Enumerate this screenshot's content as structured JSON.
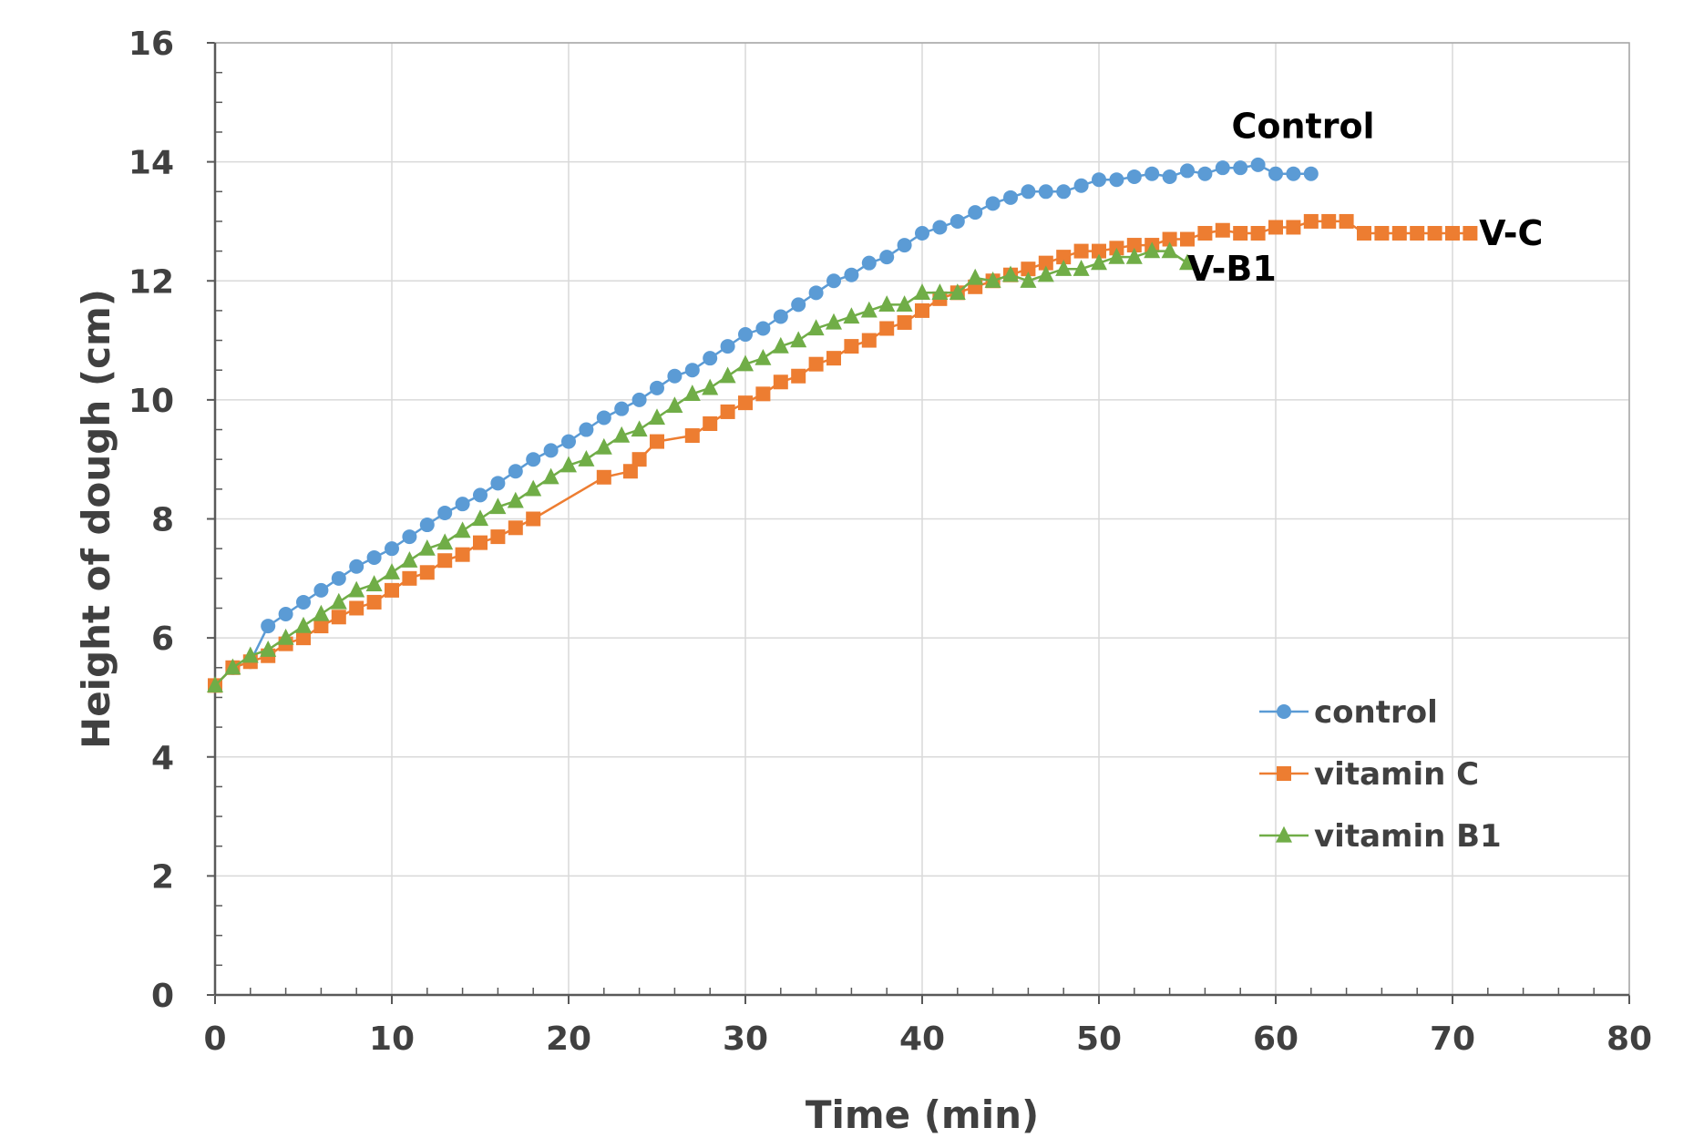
{
  "chart_data": {
    "type": "line",
    "title": "",
    "xlabel": "Time (min)",
    "ylabel": "Height of dough (cm)",
    "xlim": [
      0,
      80
    ],
    "ylim": [
      0,
      16
    ],
    "xticks": [
      "0",
      "10",
      "20",
      "30",
      "40",
      "50",
      "60",
      "70",
      "80"
    ],
    "yticks": [
      "0",
      "2",
      "4",
      "6",
      "8",
      "10",
      "12",
      "14",
      "16"
    ],
    "grid": true,
    "legend_position": "bottom-right",
    "series": [
      {
        "name": "control",
        "color": "#5b9bd5",
        "marker": "circle",
        "x": [
          0,
          1,
          2,
          3,
          4,
          5,
          6,
          7,
          8,
          9,
          10,
          11,
          12,
          13,
          14,
          15,
          16,
          17,
          18,
          19,
          20,
          21,
          22,
          23,
          24,
          25,
          26,
          27,
          28,
          29,
          30,
          31,
          32,
          33,
          34,
          35,
          36,
          37,
          38,
          39,
          40,
          41,
          42,
          43,
          44,
          45,
          46,
          47,
          48,
          49,
          50,
          51,
          52,
          53,
          54,
          55,
          56,
          57,
          58,
          59,
          60,
          61,
          62
        ],
        "y": [
          5.2,
          5.5,
          5.6,
          6.2,
          6.4,
          6.6,
          6.8,
          7.0,
          7.2,
          7.35,
          7.5,
          7.7,
          7.9,
          8.1,
          8.25,
          8.4,
          8.6,
          8.8,
          9.0,
          9.15,
          9.3,
          9.5,
          9.7,
          9.85,
          10.0,
          10.2,
          10.4,
          10.5,
          10.7,
          10.9,
          11.1,
          11.2,
          11.4,
          11.6,
          11.8,
          12.0,
          12.1,
          12.3,
          12.4,
          12.6,
          12.8,
          12.9,
          13.0,
          13.15,
          13.3,
          13.4,
          13.5,
          13.5,
          13.5,
          13.6,
          13.7,
          13.7,
          13.75,
          13.8,
          13.75,
          13.85,
          13.8,
          13.9,
          13.9,
          13.95,
          13.8,
          13.8,
          13.8
        ]
      },
      {
        "name": "vitamin C",
        "color": "#ed7d31",
        "marker": "square",
        "x": [
          0,
          1,
          2,
          3,
          4,
          5,
          6,
          7,
          8,
          9,
          10,
          11,
          12,
          13,
          14,
          15,
          16,
          17,
          18,
          22,
          23.5,
          24,
          25,
          27,
          28,
          29,
          30,
          31,
          32,
          33,
          34,
          35,
          36,
          37,
          38,
          39,
          40,
          41,
          42,
          43,
          44,
          45,
          46,
          47,
          48,
          49,
          50,
          51,
          52,
          53,
          54,
          55,
          56,
          57,
          58,
          59,
          60,
          61,
          62,
          63,
          64,
          65,
          66,
          67,
          68,
          69,
          70,
          71
        ],
        "y": [
          5.2,
          5.5,
          5.6,
          5.7,
          5.9,
          6.0,
          6.2,
          6.35,
          6.5,
          6.6,
          6.8,
          7.0,
          7.1,
          7.3,
          7.4,
          7.6,
          7.7,
          7.85,
          8.0,
          8.7,
          8.8,
          9.0,
          9.3,
          9.4,
          9.6,
          9.8,
          9.95,
          10.1,
          10.3,
          10.4,
          10.6,
          10.7,
          10.9,
          11.0,
          11.2,
          11.3,
          11.5,
          11.7,
          11.8,
          11.9,
          12.0,
          12.1,
          12.2,
          12.3,
          12.4,
          12.5,
          12.5,
          12.55,
          12.6,
          12.6,
          12.7,
          12.7,
          12.8,
          12.85,
          12.8,
          12.8,
          12.9,
          12.9,
          13.0,
          13.0,
          13.0,
          12.8,
          12.8,
          12.8,
          12.8,
          12.8,
          12.8,
          12.8
        ]
      },
      {
        "name": "vitamin B1",
        "color": "#70ad47",
        "marker": "triangle",
        "x": [
          0,
          1,
          2,
          3,
          4,
          5,
          6,
          7,
          8,
          9,
          10,
          11,
          12,
          13,
          14,
          15,
          16,
          17,
          18,
          19,
          20,
          21,
          22,
          23,
          24,
          25,
          26,
          27,
          28,
          29,
          30,
          31,
          32,
          33,
          34,
          35,
          36,
          37,
          38,
          39,
          40,
          41,
          42,
          43,
          44,
          45,
          46,
          47,
          48,
          49,
          50,
          51,
          52,
          53,
          54,
          55
        ],
        "y": [
          5.2,
          5.5,
          5.7,
          5.8,
          6.0,
          6.2,
          6.4,
          6.6,
          6.8,
          6.9,
          7.1,
          7.3,
          7.5,
          7.6,
          7.8,
          8.0,
          8.2,
          8.3,
          8.5,
          8.7,
          8.9,
          9.0,
          9.2,
          9.4,
          9.5,
          9.7,
          9.9,
          10.1,
          10.2,
          10.4,
          10.6,
          10.7,
          10.9,
          11.0,
          11.2,
          11.3,
          11.4,
          11.5,
          11.6,
          11.6,
          11.8,
          11.8,
          11.8,
          12.05,
          12.0,
          12.1,
          12.0,
          12.1,
          12.2,
          12.2,
          12.3,
          12.4,
          12.4,
          12.5,
          12.5,
          12.3
        ]
      }
    ],
    "annotations": [
      {
        "text": "Control",
        "x": 57.5,
        "y": 14.6
      },
      {
        "text": "V-C",
        "x": 71.5,
        "y": 12.8
      },
      {
        "text": "V-B1",
        "x": 55,
        "y": 12.2
      }
    ]
  }
}
